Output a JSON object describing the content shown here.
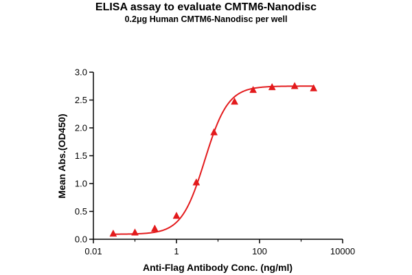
{
  "chart_data": {
    "type": "line",
    "title": "ELISA assay to evaluate CMTM6-Nanodisc",
    "subtitle": "0.2μg Human CMTM6-Nanodisc per well",
    "xlabel": "Anti-Flag Antibody Conc. (ng/ml)",
    "ylabel": "Mean Abs.(OD450)",
    "x_scale": "log",
    "xlim": [
      0.01,
      10000
    ],
    "ylim": [
      0,
      3.0
    ],
    "x_ticks": [
      0.01,
      1,
      100,
      10000
    ],
    "x_tick_labels": [
      "0.01",
      "1",
      "100",
      "10000"
    ],
    "y_ticks": [
      0,
      0.5,
      1.0,
      1.5,
      2.0,
      2.5,
      3.0
    ],
    "y_tick_labels": [
      "0.0",
      "0.5",
      "1.0",
      "1.5",
      "2.0",
      "2.5",
      "3.0"
    ],
    "grid": false,
    "legend": "none",
    "color": "#e31a1c",
    "marker": "triangle",
    "series": [
      {
        "x": [
          0.03,
          0.1,
          0.3,
          1,
          3,
          8,
          25,
          70,
          200,
          700,
          2000
        ],
        "y": [
          0.1,
          0.12,
          0.19,
          0.42,
          1.02,
          1.92,
          2.47,
          2.68,
          2.73,
          2.75,
          2.71
        ]
      }
    ],
    "fit": {
      "bottom": 0.09,
      "top": 2.75,
      "ec50": 4.8,
      "hill": 1.55
    }
  }
}
